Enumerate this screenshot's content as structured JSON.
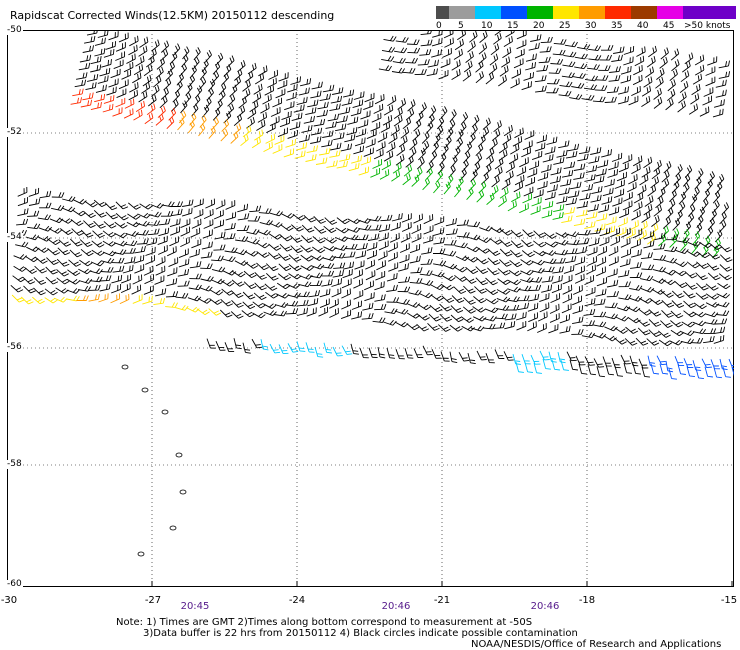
{
  "title": "Rapidscat Corrected Winds(12.5KM) 20150112 descending",
  "legend": {
    "labels": [
      "0",
      "5",
      "10",
      "15",
      "20",
      "25",
      "30",
      "35",
      "40",
      "45",
      ">50 knots"
    ],
    "colors": [
      "#4d4d4d",
      "#9c9c9c",
      "#00c8ff",
      "#0050ff",
      "#00b400",
      "#ffe600",
      "#ff9c00",
      "#ff2a00",
      "#9c3a00",
      "#e600e6",
      "#6e00c8"
    ]
  },
  "lat_labels": [
    "-50",
    "-52",
    "-54",
    "-56",
    "-58",
    "-60"
  ],
  "lon_labels": [
    "-30",
    "-27",
    "-24",
    "-21",
    "-18",
    "-15"
  ],
  "time_labels": [
    "20:45",
    "20:46",
    "20:46"
  ],
  "notes": [
    "Note: 1) Times are GMT 2)Times along bottom correspond to measurement at -50S",
    "3)Data buffer is 22 hrs from 20150112 4) Black circles indicate possible contamination",
    "NOAA/NESDIS/Office of Research and Applications"
  ]
}
